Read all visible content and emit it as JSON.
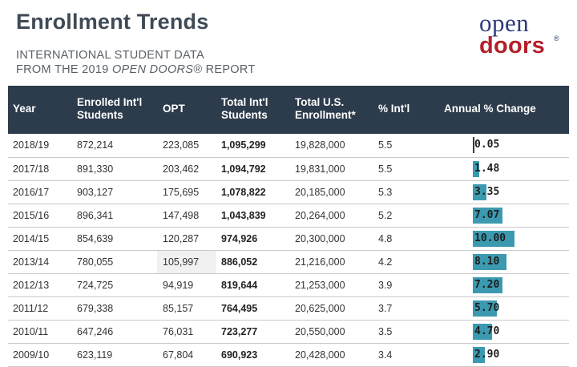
{
  "title": "Enrollment Trends",
  "subtitle": {
    "line1": "INTERNATIONAL STUDENT DATA",
    "line2_prefix": "FROM THE 2019 ",
    "line2_em": "OPEN DOORS®",
    "line2_suffix": " REPORT"
  },
  "logo": {
    "line1": "open",
    "line2": "doors",
    "reg": "®"
  },
  "columns": {
    "year": "Year",
    "enrolled": "Enrolled Int'l Students",
    "opt": "OPT",
    "total_intl": "Total Int'l Students",
    "total_us": "Total U.S. Enrollment*",
    "pct_intl": "% Int'l",
    "annual_change": "Annual % Change"
  },
  "colors": {
    "header_bg": "#2d3c4c",
    "bar": "#3b9ab0",
    "title": "#3f4a55",
    "logo_blue": "#2b3a7a",
    "logo_red": "#b3202a"
  },
  "rows": [
    {
      "year": "2018/19",
      "enrolled": "872,214",
      "opt": "223,085",
      "total_intl": "1,095,299",
      "total_us": "19,828,000",
      "pct_intl": "5.5",
      "annual_change": "0.05",
      "change_value": 0.05
    },
    {
      "year": "2017/18",
      "enrolled": "891,330",
      "opt": "203,462",
      "total_intl": "1,094,792",
      "total_us": "19,831,000",
      "pct_intl": "5.5",
      "annual_change": "1.48",
      "change_value": 1.48
    },
    {
      "year": "2016/17",
      "enrolled": "903,127",
      "opt": "175,695",
      "total_intl": "1,078,822",
      "total_us": "20,185,000",
      "pct_intl": "5.3",
      "annual_change": "3.35",
      "change_value": 3.35
    },
    {
      "year": "2015/16",
      "enrolled": "896,341",
      "opt": "147,498",
      "total_intl": "1,043,839",
      "total_us": "20,264,000",
      "pct_intl": "5.2",
      "annual_change": "7.07",
      "change_value": 7.07
    },
    {
      "year": "2014/15",
      "enrolled": "854,639",
      "opt": "120,287",
      "total_intl": "974,926",
      "total_us": "20,300,000",
      "pct_intl": "4.8",
      "annual_change": "10.00",
      "change_value": 10.0
    },
    {
      "year": "2013/14",
      "enrolled": "780,055",
      "opt": "105,997",
      "total_intl": "886,052",
      "total_us": "21,216,000",
      "pct_intl": "4.2",
      "annual_change": "8.10",
      "change_value": 8.1
    },
    {
      "year": "2012/13",
      "enrolled": "724,725",
      "opt": "94,919",
      "total_intl": "819,644",
      "total_us": "21,253,000",
      "pct_intl": "3.9",
      "annual_change": "7.20",
      "change_value": 7.2
    },
    {
      "year": "2011/12",
      "enrolled": "679,338",
      "opt": "85,157",
      "total_intl": "764,495",
      "total_us": "20,625,000",
      "pct_intl": "3.7",
      "annual_change": "5.70",
      "change_value": 5.7
    },
    {
      "year": "2010/11",
      "enrolled": "647,246",
      "opt": "76,031",
      "total_intl": "723,277",
      "total_us": "20,550,000",
      "pct_intl": "3.5",
      "annual_change": "4.70",
      "change_value": 4.7
    },
    {
      "year": "2009/10",
      "enrolled": "623,119",
      "opt": "67,804",
      "total_intl": "690,923",
      "total_us": "20,428,000",
      "pct_intl": "3.4",
      "annual_change": "2.90",
      "change_value": 2.9
    }
  ]
}
